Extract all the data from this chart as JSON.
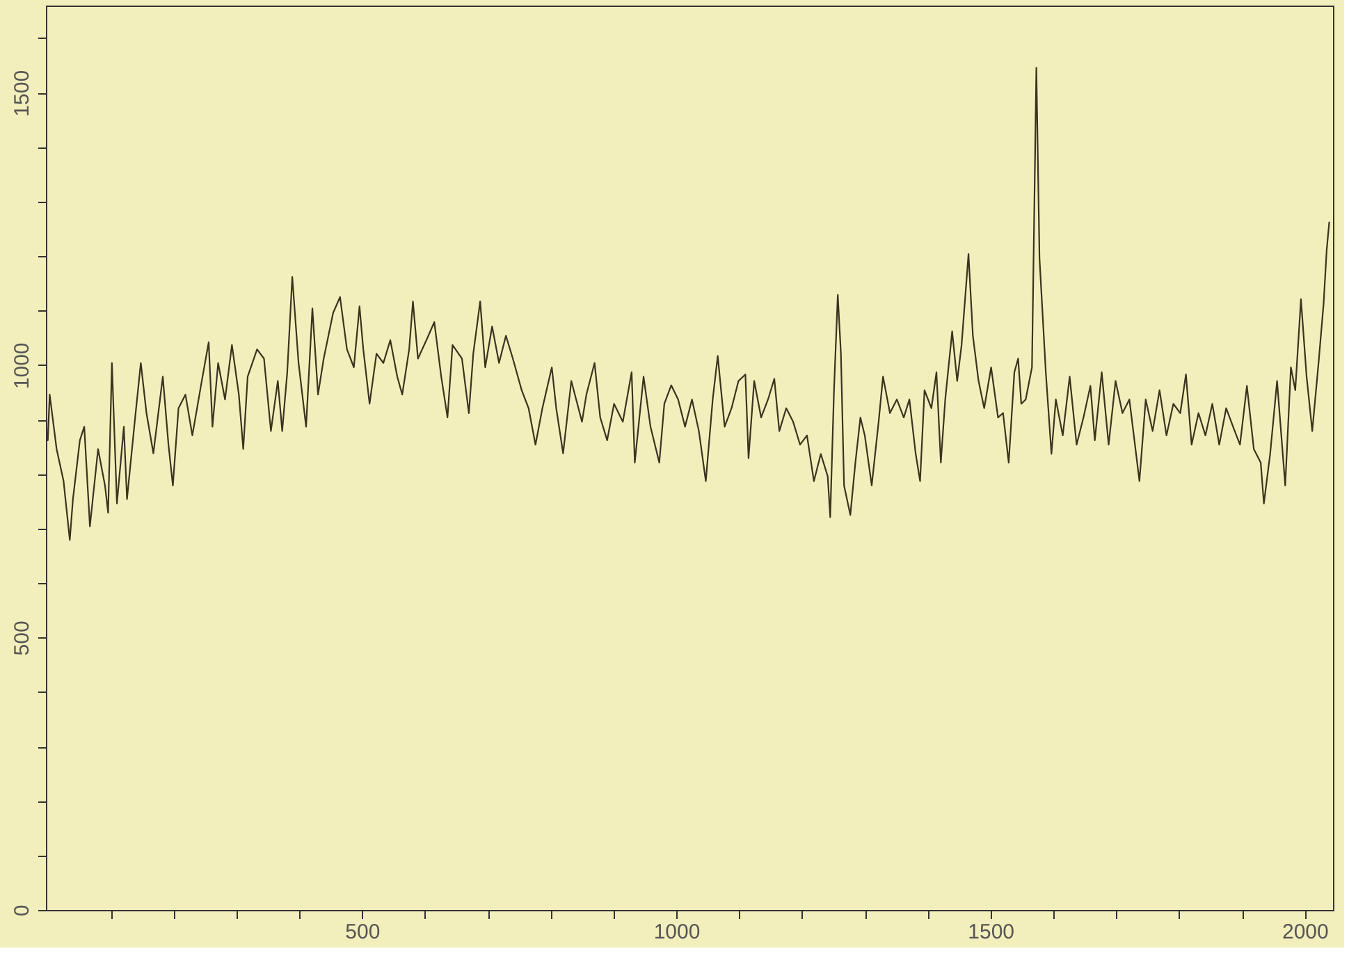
{
  "chart_data": {
    "type": "line",
    "x": [
      0,
      3,
      14,
      25,
      35,
      40,
      51,
      58,
      67,
      80,
      91,
      96,
      102,
      110,
      121,
      126,
      139,
      148,
      157,
      168,
      183,
      192,
      199,
      208,
      219,
      230,
      245,
      256,
      262,
      271,
      282,
      293,
      304,
      311,
      318,
      333,
      344,
      355,
      366,
      373,
      381,
      389,
      399,
      411,
      421,
      430,
      439,
      454,
      465,
      476,
      487,
      496,
      502,
      512,
      523,
      534,
      545,
      556,
      564,
      575,
      581,
      589,
      604,
      615,
      626,
      636,
      644,
      659,
      670,
      677,
      688,
      696,
      707,
      718,
      729,
      740,
      754,
      765,
      776,
      787,
      802,
      809,
      820,
      833,
      850,
      857,
      870,
      879,
      890,
      901,
      915,
      929,
      934,
      948,
      959,
      973,
      981,
      992,
      1003,
      1014,
      1025,
      1036,
      1047,
      1058,
      1066,
      1077,
      1088,
      1099,
      1110,
      1115,
      1124,
      1135,
      1146,
      1156,
      1164,
      1175,
      1186,
      1197,
      1208,
      1219,
      1230,
      1241,
      1245,
      1251,
      1257,
      1262,
      1267,
      1277,
      1285,
      1293,
      1300,
      1311,
      1322,
      1329,
      1340,
      1351,
      1362,
      1371,
      1381,
      1388,
      1395,
      1406,
      1414,
      1421,
      1428,
      1439,
      1447,
      1454,
      1465,
      1472,
      1481,
      1490,
      1501,
      1512,
      1520,
      1529,
      1538,
      1544,
      1549,
      1556,
      1566,
      1573,
      1578,
      1584,
      1588,
      1597,
      1604,
      1615,
      1626,
      1637,
      1648,
      1659,
      1666,
      1677,
      1688,
      1699,
      1710,
      1721,
      1737,
      1747,
      1758,
      1769,
      1780,
      1791,
      1802,
      1811,
      1820,
      1831,
      1842,
      1853,
      1864,
      1875,
      1886,
      1897,
      1908,
      1919,
      1930,
      1935,
      1945,
      1956,
      1969,
      1978,
      1985,
      1994,
      2003,
      2012,
      2022,
      2030,
      2035,
      2039
    ],
    "series": [
      {
        "color": "#3a3320",
        "values": [
          862,
          946,
          846,
          788,
          679,
          754,
          862,
          887,
          704,
          846,
          779,
          729,
          1004,
          746,
          887,
          754,
          904,
          1004,
          912,
          838,
          979,
          854,
          779,
          921,
          946,
          871,
          971,
          1042,
          887,
          1004,
          937,
          1037,
          946,
          846,
          979,
          1029,
          1012,
          879,
          971,
          879,
          987,
          1162,
          1004,
          887,
          1104,
          946,
          1012,
          1096,
          1125,
          1029,
          996,
          1108,
          1029,
          929,
          1021,
          1004,
          1046,
          979,
          946,
          1029,
          1117,
          1012,
          1050,
          1079,
          979,
          904,
          1037,
          1012,
          912,
          1021,
          1117,
          996,
          1071,
          1004,
          1054,
          1012,
          954,
          921,
          854,
          921,
          996,
          921,
          838,
          971,
          896,
          946,
          1004,
          904,
          862,
          929,
          896,
          987,
          821,
          979,
          887,
          821,
          929,
          963,
          937,
          887,
          937,
          879,
          787,
          937,
          1017,
          887,
          921,
          971,
          983,
          829,
          971,
          904,
          937,
          975,
          879,
          921,
          896,
          854,
          871,
          787,
          837,
          796,
          721,
          954,
          1129,
          1021,
          779,
          725,
          821,
          904,
          871,
          779,
          896,
          979,
          912,
          937,
          904,
          937,
          837,
          787,
          954,
          921,
          987,
          821,
          937,
          1062,
          971,
          1037,
          1204,
          1054,
          971,
          921,
          996,
          904,
          912,
          821,
          987,
          1012,
          929,
          937,
          996,
          1546,
          1196,
          1071,
          987,
          837,
          937,
          871,
          979,
          854,
          904,
          962,
          862,
          987,
          854,
          971,
          912,
          937,
          787,
          937,
          879,
          954,
          871,
          929,
          912,
          983,
          854,
          912,
          871,
          929,
          854,
          921,
          887,
          854,
          962,
          846,
          821,
          746,
          837,
          971,
          779,
          996,
          954,
          1121,
          979,
          879,
          1004,
          1112,
          1212,
          1262
        ]
      }
    ],
    "xlim": [
      -3,
      2045
    ],
    "ylim": [
      0,
      1660
    ],
    "xticks": [
      {
        "value": 100,
        "label": null
      },
      {
        "value": 200,
        "label": null
      },
      {
        "value": 300,
        "label": null
      },
      {
        "value": 400,
        "label": null
      },
      500,
      {
        "value": 600,
        "label": null
      },
      {
        "value": 700,
        "label": null
      },
      {
        "value": 800,
        "label": null
      },
      {
        "value": 900,
        "label": null
      },
      1000,
      {
        "value": 1100,
        "label": null
      },
      {
        "value": 1200,
        "label": null
      },
      {
        "value": 1300,
        "label": null
      },
      {
        "value": 1400,
        "label": null
      },
      1500,
      {
        "value": 1600,
        "label": null
      },
      {
        "value": 1700,
        "label": null
      },
      {
        "value": 1800,
        "label": null
      },
      {
        "value": 1900,
        "label": null
      },
      2000
    ],
    "yticks": [
      0,
      {
        "value": 100,
        "label": null
      },
      {
        "value": 200,
        "label": null
      },
      {
        "value": 300,
        "label": null
      },
      {
        "value": 400,
        "label": null
      },
      500,
      {
        "value": 600,
        "label": null
      },
      {
        "value": 700,
        "label": null
      },
      {
        "value": 800,
        "label": null
      },
      {
        "value": 900,
        "label": null
      },
      1000,
      {
        "value": 1100,
        "label": null
      },
      {
        "value": 1200,
        "label": null
      },
      {
        "value": 1300,
        "label": null
      },
      {
        "value": 1400,
        "label": null
      },
      1500,
      {
        "value": 1600,
        "label": null
      }
    ],
    "grid": false,
    "legend": false,
    "marker": "none",
    "line_style": "solid"
  }
}
